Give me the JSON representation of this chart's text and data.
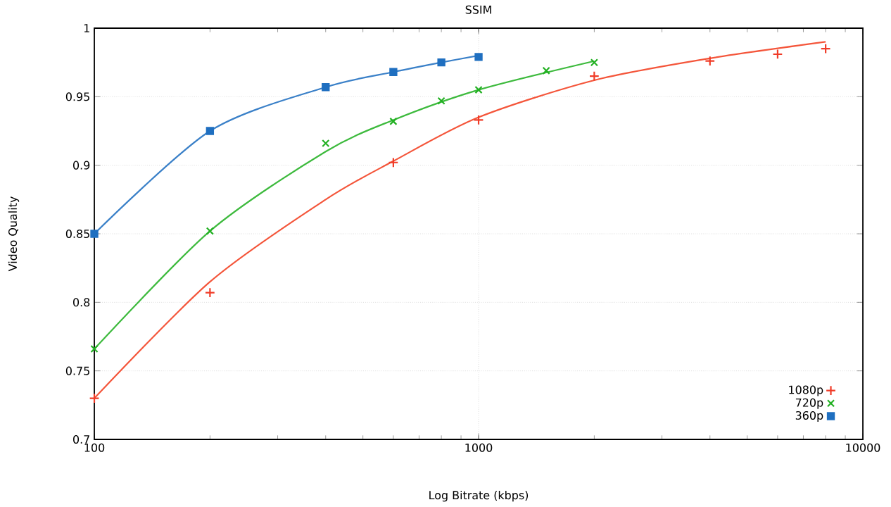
{
  "chart_data": {
    "type": "scatter",
    "title": "SSIM",
    "xlabel": "Log Bitrate (kbps)",
    "ylabel": "Video Quality",
    "log": "x",
    "grid": true,
    "legend": "bottom right",
    "xlim": [
      100,
      10000
    ],
    "xticks": [
      100,
      1000,
      10000
    ],
    "ylim": [
      0.7,
      1
    ],
    "yticks": [
      0.7,
      0.75,
      0.8,
      0.85,
      0.9,
      0.95,
      1
    ],
    "series": [
      {
        "type": "line",
        "marker": "none",
        "line_style": "solid",
        "color": "#f4553a",
        "x": [
          100,
          200,
          400,
          600,
          1000,
          2000,
          4000,
          8000
        ],
        "values": [
          0.73,
          0.815,
          0.875,
          0.903,
          0.935,
          0.962,
          0.978,
          0.99
        ]
      },
      {
        "type": "line",
        "marker": "none",
        "line_style": "solid",
        "color": "#3dba3d",
        "x": [
          100,
          200,
          400,
          600,
          1000,
          2000
        ],
        "values": [
          0.766,
          0.852,
          0.91,
          0.933,
          0.955,
          0.976
        ]
      },
      {
        "type": "line",
        "marker": "none",
        "line_style": "solid",
        "color": "#3a80c8",
        "x": [
          100,
          200,
          400,
          600,
          800,
          1000
        ],
        "values": [
          0.85,
          0.925,
          0.957,
          0.968,
          0.975,
          0.98
        ]
      },
      {
        "name": "1080p",
        "marker": "cross",
        "color": "#f03c28",
        "x": [
          100,
          200,
          600,
          1000,
          2000,
          4000,
          6000,
          8000
        ],
        "values": [
          0.73,
          0.807,
          0.902,
          0.933,
          0.965,
          0.976,
          0.981,
          0.985
        ]
      },
      {
        "name": "720p",
        "marker": "x",
        "color": "#22b022",
        "x": [
          100,
          200,
          400,
          600,
          800,
          1000,
          1500,
          2000
        ],
        "values": [
          0.766,
          0.852,
          0.916,
          0.932,
          0.947,
          0.955,
          0.969,
          0.975
        ]
      },
      {
        "name": "360p",
        "marker": "square",
        "color": "#1f6fc0",
        "x": [
          100,
          200,
          400,
          600,
          800,
          1000
        ],
        "values": [
          0.85,
          0.925,
          0.957,
          0.968,
          0.975,
          0.979
        ]
      }
    ]
  }
}
